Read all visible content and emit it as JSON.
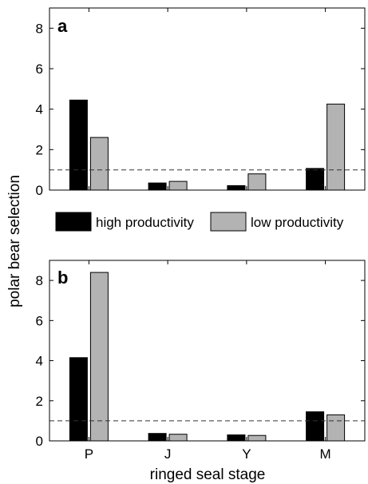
{
  "figure": {
    "ylabel": "polar bear selection",
    "xlabel": "ringed seal stage"
  },
  "legend": {
    "items": [
      {
        "name": "high productivity",
        "color": "#000000"
      },
      {
        "name": "low productivity",
        "color": "#b3b3b3"
      }
    ]
  },
  "chart_data": [
    {
      "type": "bar",
      "panel": "a",
      "categories": [
        "P",
        "J",
        "Y",
        "M"
      ],
      "series": [
        {
          "name": "high productivity",
          "color": "#000000",
          "values": [
            4.45,
            0.35,
            0.22,
            1.07
          ]
        },
        {
          "name": "low productivity",
          "color": "#b3b3b3",
          "values": [
            2.6,
            0.43,
            0.8,
            4.25
          ]
        }
      ],
      "ylim": [
        0,
        9
      ],
      "yticks": [
        0,
        2,
        4,
        6,
        8
      ],
      "reference_line": {
        "y": 1,
        "style": "dashed"
      },
      "show_xtick_labels": false
    },
    {
      "type": "bar",
      "panel": "b",
      "categories": [
        "P",
        "J",
        "Y",
        "M"
      ],
      "series": [
        {
          "name": "high productivity",
          "color": "#000000",
          "values": [
            4.15,
            0.37,
            0.3,
            1.45
          ]
        },
        {
          "name": "low productivity",
          "color": "#b3b3b3",
          "values": [
            8.4,
            0.33,
            0.27,
            1.3
          ]
        }
      ],
      "ylim": [
        0,
        9
      ],
      "yticks": [
        0,
        2,
        4,
        6,
        8
      ],
      "reference_line": {
        "y": 1,
        "style": "dashed"
      },
      "show_xtick_labels": true
    }
  ]
}
